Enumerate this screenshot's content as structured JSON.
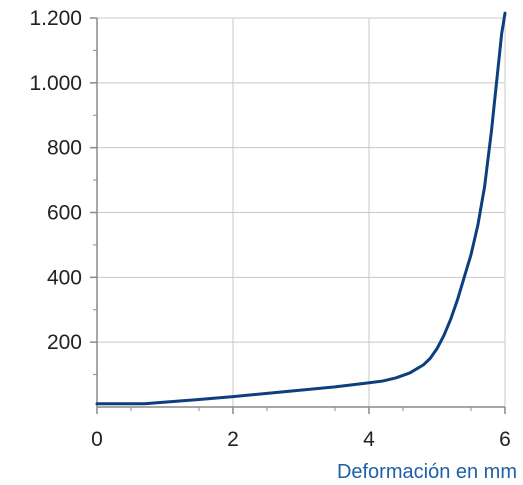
{
  "chart_data": {
    "type": "line",
    "title": "",
    "xlabel": "Deformación en mm",
    "ylabel": "",
    "xlim": [
      0,
      6
    ],
    "ylim": [
      0,
      1200
    ],
    "x_ticks": [
      0,
      2,
      4,
      6
    ],
    "x_tick_labels": [
      "0",
      "2",
      "4",
      "6"
    ],
    "y_ticks": [
      200,
      400,
      600,
      800,
      1000,
      1200
    ],
    "y_tick_labels": [
      "200",
      "400",
      "600",
      "800",
      "1.000",
      "1.200"
    ],
    "grid": true,
    "colors": {
      "line": "#0b3f7e",
      "grid": "#c8c8c8",
      "axis": "#8a8a8a",
      "xlabel": "#1f5fa8"
    },
    "series": [
      {
        "x": [
          0,
          0.3,
          0.7,
          1.0,
          1.5,
          2.0,
          2.5,
          3.0,
          3.5,
          3.9,
          4.2,
          4.4,
          4.6,
          4.8,
          4.9,
          5.0,
          5.1,
          5.2,
          5.3,
          5.4,
          5.5,
          5.6,
          5.7,
          5.8,
          5.9,
          5.95,
          6.0
        ],
        "y": [
          10,
          10,
          10,
          15,
          23,
          32,
          42,
          52,
          62,
          72,
          80,
          90,
          105,
          130,
          150,
          180,
          220,
          270,
          330,
          400,
          470,
          560,
          680,
          850,
          1050,
          1150,
          1215
        ]
      }
    ]
  }
}
